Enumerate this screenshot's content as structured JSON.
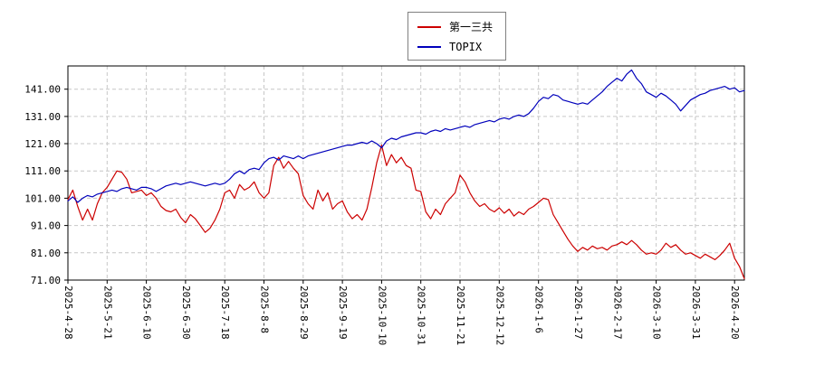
{
  "page": {
    "background": "#ffffff"
  },
  "chart_data": {
    "type": "line",
    "title": "",
    "xlabel": "",
    "ylabel": "",
    "legend_position": "top-center",
    "grid": "dashed",
    "ylim": [
      71,
      149.5
    ],
    "yticks": [
      71,
      81,
      91,
      101,
      111,
      121,
      131,
      141
    ],
    "ytick_labels": [
      "71.00",
      "81.00",
      "91.00",
      "101.00",
      "111.00",
      "121.00",
      "131.00",
      "141.00"
    ],
    "label_every": 8,
    "categories": [
      "2025-4-28",
      "2025-5-21",
      "2025-6-10",
      "2025-6-30",
      "2025-7-18",
      "2025-8-8",
      "2025-8-29",
      "2025-9-19",
      "2025-10-10",
      "2025-10-31",
      "2025-11-21",
      "2025-12-12",
      "2026-1-6",
      "2026-1-27",
      "2026-2-17",
      "2026-3-10",
      "2026-3-31",
      "2026-4-20"
    ],
    "series": [
      {
        "name": "第一三共",
        "color": "#cc0000",
        "values": [
          100.5,
          104,
          98,
          93,
          97,
          93,
          99,
          103,
          105,
          108,
          111,
          110.5,
          108,
          103,
          103.5,
          104,
          102,
          103,
          101,
          98,
          96.5,
          96,
          97,
          94,
          92,
          95,
          93.5,
          91,
          88.5,
          90,
          93,
          97,
          103,
          104,
          101,
          106,
          104,
          105,
          107,
          103,
          101,
          103,
          113,
          116,
          112,
          114.5,
          112,
          110,
          102,
          99,
          97,
          104,
          100,
          103,
          97,
          99,
          100,
          96,
          93.5,
          95,
          93,
          97,
          105,
          114,
          120.5,
          113,
          117,
          114,
          116,
          113,
          112,
          104,
          103.5,
          96,
          93.5,
          97,
          95,
          99,
          101,
          103,
          109.5,
          107,
          103,
          100,
          98,
          99,
          97,
          96,
          97.5,
          95.5,
          97,
          94.5,
          96,
          95,
          97,
          98,
          99.5,
          101,
          100.5,
          95,
          92,
          89,
          86,
          83.5,
          81.5,
          83,
          82,
          83.5,
          82.5,
          83,
          82,
          83.5,
          84,
          85,
          84,
          85.5,
          84,
          82,
          80.5,
          81,
          80.5,
          82,
          84.5,
          83,
          84,
          82,
          80.5,
          81,
          80,
          79,
          80.5,
          79.5,
          78.5,
          80,
          82,
          84.5,
          79,
          76,
          71.5
        ]
      },
      {
        "name": "TOPIX",
        "color": "#0000bb",
        "values": [
          100,
          101.5,
          99.5,
          101,
          102,
          101.5,
          102.5,
          103,
          103.5,
          104,
          103.5,
          104.5,
          105,
          104.5,
          104,
          105,
          105,
          104.5,
          103.5,
          104.5,
          105.5,
          106,
          106.5,
          106,
          106.5,
          107,
          106.5,
          106,
          105.5,
          106,
          106.5,
          106,
          106.5,
          108,
          110,
          111,
          110,
          111.5,
          112,
          111.5,
          114,
          115.5,
          116,
          115,
          116.5,
          116,
          115.5,
          116.5,
          115.5,
          116.5,
          117,
          117.5,
          118,
          118.5,
          119,
          119.5,
          120,
          120.5,
          120.5,
          121,
          121.5,
          121,
          122,
          121,
          119.5,
          122,
          123,
          122.5,
          123.5,
          124,
          124.5,
          125,
          125,
          124.5,
          125.5,
          126,
          125.5,
          126.5,
          126,
          126.5,
          127,
          127.5,
          127,
          128,
          128.5,
          129,
          129.5,
          129,
          130,
          130.5,
          130,
          131,
          131.5,
          131,
          132,
          134,
          136.5,
          138,
          137.5,
          139,
          138.5,
          137,
          136.5,
          136,
          135.5,
          136,
          135.5,
          137,
          138.5,
          140,
          142,
          143.5,
          145,
          144,
          146.5,
          148,
          145,
          143,
          140,
          139,
          138,
          139.5,
          138.5,
          137,
          135.5,
          133,
          135,
          137,
          138,
          139,
          139.5,
          140.5,
          141,
          141.5,
          142,
          141,
          141.5,
          140,
          140.5
        ]
      }
    ]
  }
}
